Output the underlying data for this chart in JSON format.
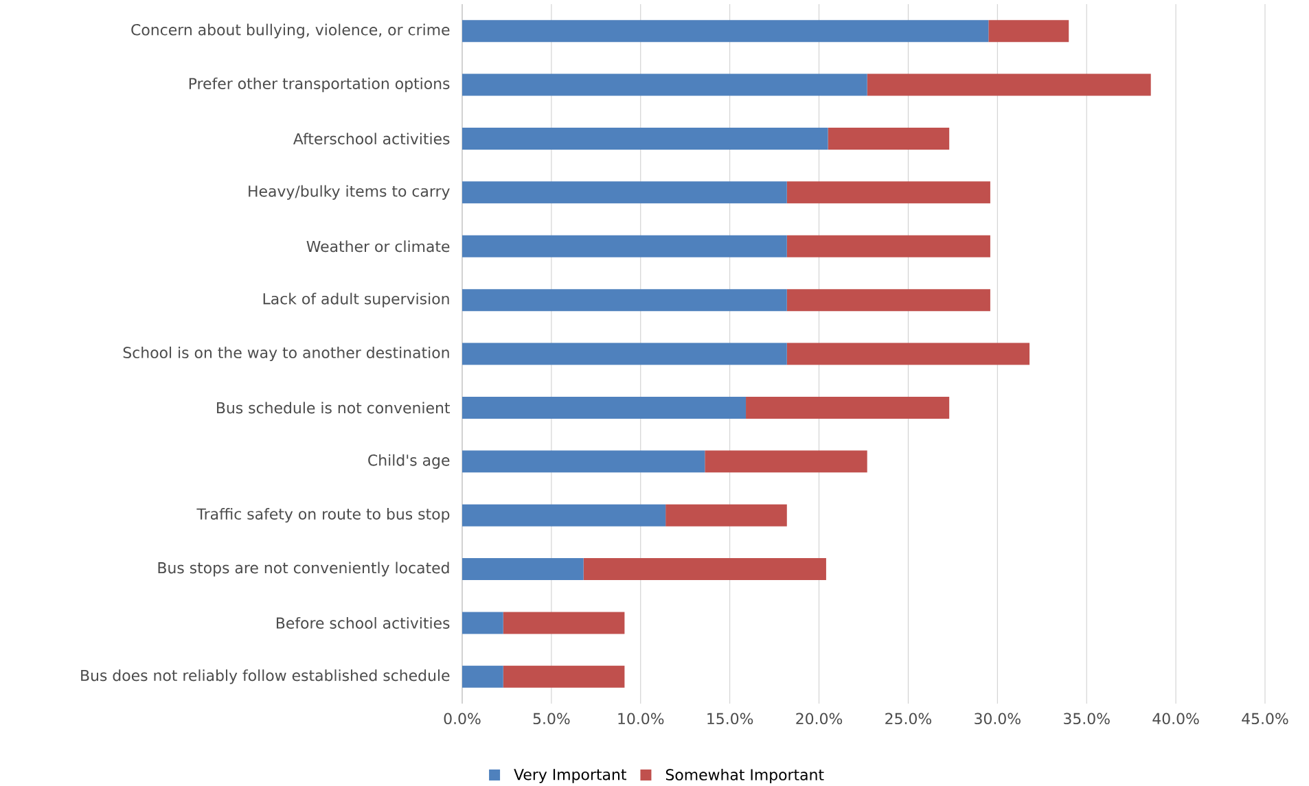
{
  "chart_data": {
    "type": "bar",
    "orientation": "horizontal",
    "stacked": true,
    "categories": [
      "Concern about bullying, violence, or crime",
      "Prefer other transportation options",
      "Afterschool activities",
      "Heavy/bulky items to carry",
      "Weather or climate",
      "Lack of adult supervision",
      "School is on the way to another destination",
      "Bus schedule is not convenient",
      "Child's age",
      "Traffic safety on route to bus stop",
      "Bus stops are not conveniently located",
      "Before school activities",
      "Bus does not reliably follow established schedule"
    ],
    "series": [
      {
        "name": "Very Important",
        "color": "#4f81bd",
        "values": [
          29.5,
          22.7,
          20.5,
          18.2,
          18.2,
          18.2,
          18.2,
          15.9,
          13.6,
          11.4,
          6.8,
          2.3,
          2.3
        ]
      },
      {
        "name": "Somewhat Important",
        "color": "#c0504d",
        "values": [
          4.5,
          15.9,
          6.8,
          11.4,
          11.4,
          11.4,
          13.6,
          11.4,
          9.1,
          6.8,
          13.6,
          6.8,
          6.8
        ]
      }
    ],
    "xlim": [
      0,
      45
    ],
    "xticks": [
      {
        "value": 0,
        "label": "0.0%"
      },
      {
        "value": 5,
        "label": "5.0%"
      },
      {
        "value": 10,
        "label": "10.0%"
      },
      {
        "value": 15,
        "label": "15.0%"
      },
      {
        "value": 20,
        "label": "20.0%"
      },
      {
        "value": 25,
        "label": "25.0%"
      },
      {
        "value": 30,
        "label": "30.0%"
      },
      {
        "value": 35,
        "label": "35.0%"
      },
      {
        "value": 40,
        "label": "40.0%"
      },
      {
        "value": 45,
        "label": "45.0%"
      }
    ],
    "grid": "x",
    "legend": "bottom"
  }
}
